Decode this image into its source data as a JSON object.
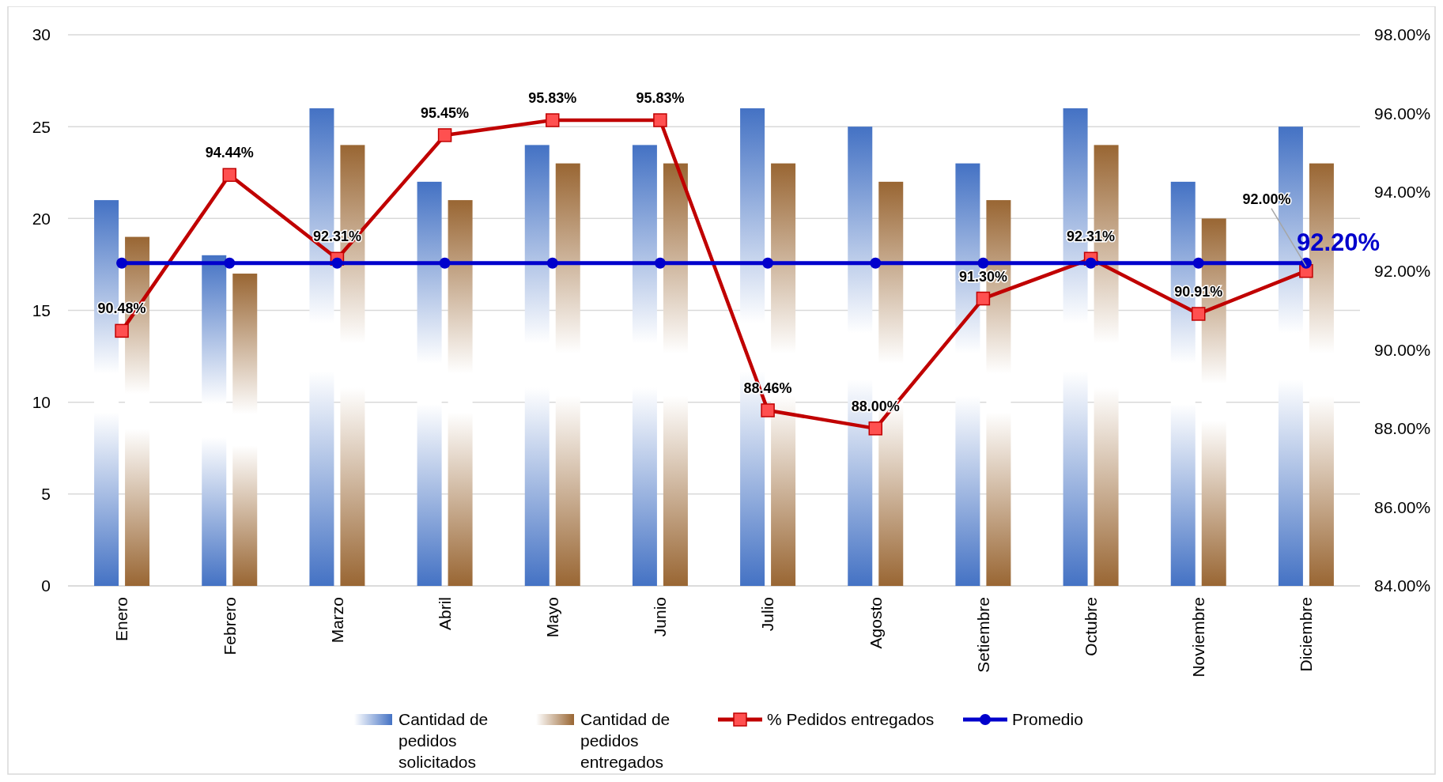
{
  "chart_data": {
    "type": "bar",
    "categories": [
      "Enero",
      "Febrero",
      "Marzo",
      "Abril",
      "Mayo",
      "Junio",
      "Julio",
      "Agosto",
      "Setiembre",
      "Octubre",
      "Noviembre",
      "Diciembre"
    ],
    "series": [
      {
        "name": "Cantidad de pedidos solicitados",
        "color": "#4472c4",
        "values": [
          21,
          18,
          26,
          22,
          24,
          24,
          26,
          25,
          23,
          26,
          22,
          25
        ]
      },
      {
        "name": "Cantidad de pedidos entregados",
        "color": "#996633",
        "values": [
          19,
          17,
          24,
          21,
          23,
          23,
          23,
          22,
          21,
          24,
          20,
          23
        ]
      },
      {
        "name": "% Pedidos entregados",
        "type": "line",
        "axis": "y2",
        "color": "#c00000",
        "marker": "square",
        "values": [
          90.48,
          94.44,
          92.31,
          95.45,
          95.83,
          95.83,
          88.46,
          88.0,
          91.3,
          92.31,
          90.91,
          92.0
        ],
        "value_labels": [
          "90.48%",
          "94.44%",
          "92.31%",
          "95.45%",
          "95.83%",
          "95.83%",
          "88.46%",
          "88.00%",
          "91.30%",
          "92.31%",
          "90.91%",
          "92.00%"
        ]
      },
      {
        "name": "Promedio",
        "type": "line",
        "axis": "y2",
        "color": "#0000cc",
        "marker": "circle",
        "values": [
          92.2,
          92.2,
          92.2,
          92.2,
          92.2,
          92.2,
          92.2,
          92.2,
          92.2,
          92.2,
          92.2,
          92.2
        ],
        "value_labels": [
          null,
          null,
          null,
          null,
          null,
          null,
          null,
          null,
          null,
          null,
          null,
          "92.20%"
        ]
      }
    ],
    "ylim": [
      0,
      30
    ],
    "yticks": [
      0,
      5,
      10,
      15,
      20,
      25,
      30
    ],
    "y2lim": [
      84,
      98
    ],
    "y2ticks": [
      {
        "value": 84,
        "label": "84.00%"
      },
      {
        "value": 86,
        "label": "86.00%"
      },
      {
        "value": 88,
        "label": "88.00%"
      },
      {
        "value": 90,
        "label": "90.00%"
      },
      {
        "value": 92,
        "label": "92.00%"
      },
      {
        "value": 94,
        "label": "94.00%"
      },
      {
        "value": 96,
        "label": "96.00%"
      },
      {
        "value": 98,
        "label": "98.00%"
      }
    ],
    "grid": "y",
    "legend": "bottom"
  }
}
